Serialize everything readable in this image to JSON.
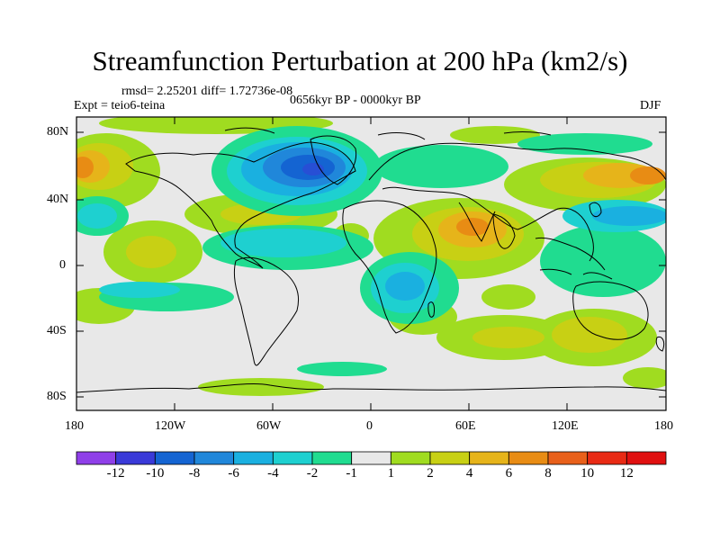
{
  "title": "Streamfunction Perturbation at 200 hPa (km2/s)",
  "stats": "rmsd= 2.25201 diff= 1.72736e-08",
  "experiment": "Expt = teio6-teina",
  "period": "0656kyr BP - 0000kyr BP",
  "season": "DJF",
  "map": {
    "lat_ticks": [
      "80N",
      "40N",
      "0",
      "40S",
      "80S"
    ],
    "lon_ticks": [
      "180",
      "120W",
      "60W",
      "0",
      "60E",
      "120E",
      "180"
    ]
  },
  "colorbar": {
    "labels": [
      "-12",
      "-10",
      "-8",
      "-6",
      "-4",
      "-2",
      "-1",
      "1",
      "2",
      "4",
      "6",
      "8",
      "10",
      "12"
    ],
    "colors": [
      "#8f3fe8",
      "#3a3ad8",
      "#1464d2",
      "#2087da",
      "#1ab0e0",
      "#1ed0d0",
      "#20dc90",
      "#e8e8e8",
      "#a0dc20",
      "#c8d014",
      "#e6b41a",
      "#e88c14",
      "#e8601a",
      "#e82a14",
      "#e01010"
    ]
  }
}
